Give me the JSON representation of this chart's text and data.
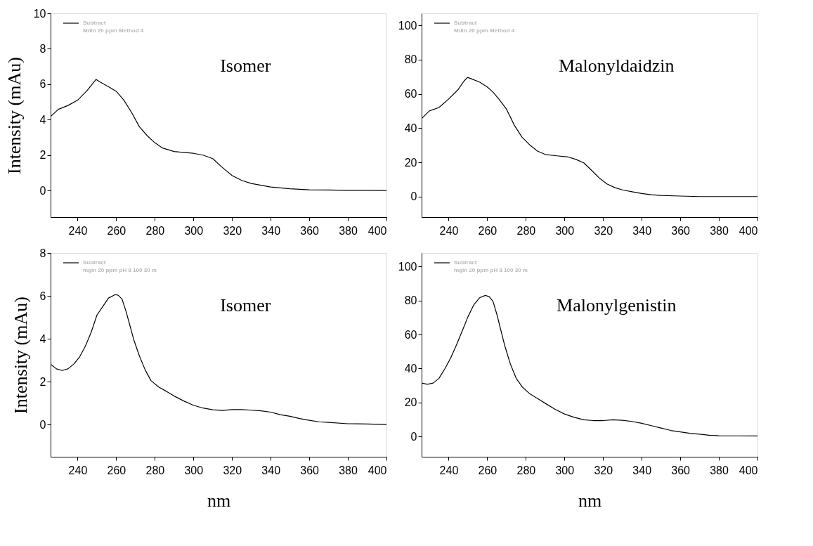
{
  "chart_data": [
    {
      "type": "line",
      "ylabel": "Intensity (mAu)",
      "annotations": [
        "Isomer"
      ],
      "legend": "top left",
      "grid": false,
      "xlim": [
        226,
        400
      ],
      "xticks": [
        240,
        260,
        280,
        300,
        320,
        340,
        360,
        380,
        400
      ],
      "ylim": [
        -1.5,
        10
      ],
      "yticks": [
        0,
        2,
        4,
        6,
        8,
        10
      ],
      "x": [
        226,
        230,
        235,
        240,
        245,
        249.5,
        252,
        257,
        260,
        264,
        268,
        272,
        276,
        280,
        284,
        290,
        295,
        300,
        305,
        310,
        315,
        320,
        325,
        330,
        335,
        340,
        350,
        360,
        370,
        380,
        390,
        400
      ],
      "series": [
        {
          "name": "Subtract\nMdin 20 ppm Method 4",
          "color": "#000000",
          "values": [
            4.18,
            4.58,
            4.8,
            5.1,
            5.65,
            6.27,
            6.1,
            5.8,
            5.6,
            5.1,
            4.4,
            3.6,
            3.1,
            2.7,
            2.4,
            2.2,
            2.15,
            2.1,
            2.0,
            1.8,
            1.3,
            0.85,
            0.57,
            0.4,
            0.3,
            0.2,
            0.1,
            0.04,
            0.03,
            0.01,
            0.01,
            0.0
          ]
        }
      ]
    },
    {
      "type": "line",
      "annotations": [
        "Malonyldaidzin"
      ],
      "legend": "top left",
      "grid": false,
      "xlim": [
        226,
        400
      ],
      "xticks": [
        240,
        260,
        280,
        300,
        320,
        340,
        360,
        380,
        400
      ],
      "ylim": [
        -12,
        107
      ],
      "yticks": [
        0,
        20,
        40,
        60,
        80,
        100
      ],
      "x": [
        226,
        230,
        235,
        240,
        245,
        248,
        249.8,
        252,
        256,
        260,
        263,
        266,
        270,
        274,
        278,
        282,
        286,
        290,
        296,
        302,
        306,
        310,
        314,
        318,
        322,
        326,
        330,
        335,
        340,
        345,
        350,
        360,
        370,
        380,
        400
      ],
      "series": [
        {
          "name": "Subtract\nMdin 20 ppm Method 4",
          "color": "#000000",
          "values": [
            45.5,
            50,
            52,
            57,
            62.6,
            67.5,
            69.6,
            68.7,
            66.9,
            64,
            61,
            57,
            51,
            41.7,
            34.7,
            30.2,
            26.6,
            24.6,
            23.8,
            23.1,
            21.7,
            19.7,
            15.4,
            10.9,
            7.4,
            5.3,
            3.9,
            2.8,
            1.8,
            1.1,
            0.7,
            0.3,
            0,
            0,
            0
          ]
        }
      ]
    },
    {
      "type": "line",
      "xlabel": "nm",
      "ylabel": "Intensity (mAu)",
      "annotations": [
        "Isomer"
      ],
      "legend": "top left",
      "grid": false,
      "xlim": [
        226,
        400
      ],
      "xticks": [
        240,
        260,
        280,
        300,
        320,
        340,
        360,
        380,
        400
      ],
      "ylim": [
        -1.5,
        8
      ],
      "yticks": [
        0,
        2,
        4,
        6,
        8
      ],
      "x": [
        226,
        229,
        232,
        235,
        238,
        241,
        244,
        247,
        250,
        253,
        256,
        259.5,
        261,
        263,
        265,
        267,
        269,
        272,
        275,
        278,
        282,
        286,
        290,
        295,
        300,
        305,
        310,
        315,
        320,
        325,
        330,
        335,
        340,
        345,
        350,
        355,
        360,
        365,
        370,
        380,
        390,
        400
      ],
      "series": [
        {
          "name": "Subtract\nmgin 20 ppm pH 8 100 30 m",
          "color": "#000000",
          "values": [
            2.82,
            2.6,
            2.52,
            2.6,
            2.82,
            3.15,
            3.65,
            4.3,
            5.1,
            5.5,
            5.9,
            6.06,
            6.03,
            5.85,
            5.3,
            4.65,
            3.98,
            3.2,
            2.55,
            2.05,
            1.75,
            1.55,
            1.33,
            1.1,
            0.9,
            0.77,
            0.69,
            0.66,
            0.7,
            0.7,
            0.67,
            0.64,
            0.58,
            0.46,
            0.39,
            0.28,
            0.2,
            0.13,
            0.1,
            0.04,
            0.03,
            0
          ]
        }
      ]
    },
    {
      "type": "line",
      "xlabel": "nm",
      "annotations": [
        "Malonylgenistin"
      ],
      "legend": "top left",
      "grid": false,
      "xlim": [
        226,
        400
      ],
      "xticks": [
        240,
        260,
        280,
        300,
        320,
        340,
        360,
        380,
        400
      ],
      "ylim": [
        -12,
        108
      ],
      "yticks": [
        0,
        20,
        40,
        60,
        80,
        100
      ],
      "x": [
        226,
        229,
        232,
        235,
        238,
        241,
        244,
        247,
        250,
        253,
        256,
        259,
        261,
        263,
        265,
        267,
        269,
        272,
        275,
        278,
        282,
        286,
        290,
        295,
        300,
        305,
        310,
        315,
        320,
        325,
        330,
        335,
        340,
        345,
        350,
        355,
        360,
        365,
        370,
        375,
        380,
        390,
        400
      ],
      "series": [
        {
          "name": "Subtract\nmgin 20 ppm pH 8 100 30 m",
          "color": "#000000",
          "values": [
            31.4,
            30.7,
            31.4,
            34.2,
            39.7,
            46,
            53.7,
            62,
            70.4,
            77.4,
            81.6,
            83,
            82.3,
            79.5,
            71.8,
            62.8,
            53.7,
            42.5,
            34.2,
            29.3,
            25.1,
            22.3,
            19.5,
            16,
            13.2,
            11.2,
            9.8,
            9.3,
            9.3,
            9.8,
            9.5,
            8.8,
            7.7,
            6.3,
            4.9,
            3.5,
            2.6,
            1.8,
            1.3,
            0.7,
            0.4,
            0.3,
            0.3
          ]
        }
      ]
    }
  ]
}
